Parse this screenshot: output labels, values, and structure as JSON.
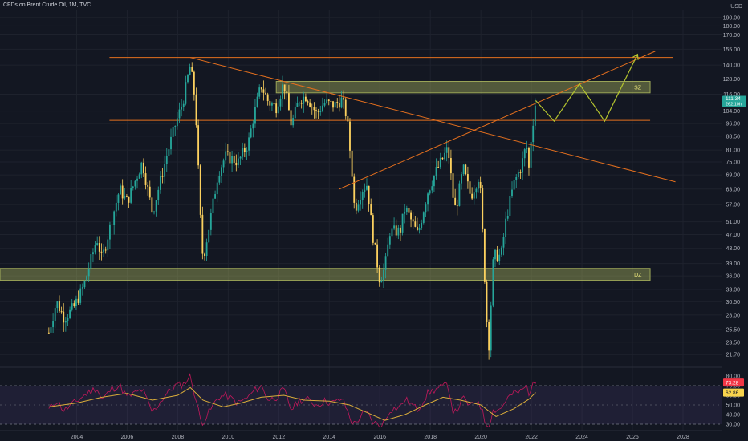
{
  "header": {
    "title": "CFDs on Brent Crude Oil, 1M, TVC"
  },
  "colors": {
    "background": "#131722",
    "candle_up": "#26a69a",
    "candle_down": "#fcd15f",
    "orange_line": "#e36f1e",
    "zone_fill": "#c8d36a",
    "projection": "#b5c52f",
    "rsi": "#c2185b",
    "rsi_ma": "#d9ac3a",
    "price_tag": "#26a69a"
  },
  "chart_data": {
    "type": "candlestick",
    "symbol": "CFDs on Brent Crude Oil",
    "interval": "1M",
    "source": "TVC",
    "currency": "USD",
    "scale": "log",
    "x_ticks": [
      "2004",
      "2006",
      "2008",
      "2010",
      "2012",
      "2014",
      "2016",
      "2018",
      "2020",
      "2022",
      "2024",
      "2026",
      "2028"
    ],
    "y_ticks": [
      190.0,
      180.0,
      170.0,
      155.0,
      140.0,
      128.0,
      116.0,
      104.0,
      96.0,
      88.5,
      81.0,
      75.0,
      69.0,
      63.0,
      57.0,
      51.0,
      47.0,
      43.0,
      39.0,
      36.0,
      33.0,
      30.5,
      28.0,
      25.5,
      23.5,
      21.7
    ],
    "last_price": "111.34",
    "price_tag_sub": "262:10h",
    "price_series": [
      [
        2002.9,
        25.0
      ],
      [
        2003.2,
        30.5
      ],
      [
        2003.5,
        27.5
      ],
      [
        2003.9,
        29.5
      ],
      [
        2004.3,
        34.0
      ],
      [
        2004.8,
        46.0
      ],
      [
        2005.0,
        40.0
      ],
      [
        2005.4,
        52.0
      ],
      [
        2005.7,
        63.0
      ],
      [
        2006.0,
        58.0
      ],
      [
        2006.6,
        75.0
      ],
      [
        2007.0,
        54.0
      ],
      [
        2007.5,
        75.0
      ],
      [
        2007.9,
        95.0
      ],
      [
        2008.2,
        110.0
      ],
      [
        2008.5,
        140.0
      ],
      [
        2008.7,
        110.0
      ],
      [
        2008.9,
        52.0
      ],
      [
        2009.0,
        40.0
      ],
      [
        2009.3,
        52.0
      ],
      [
        2009.6,
        70.0
      ],
      [
        2009.9,
        78.0
      ],
      [
        2010.4,
        75.0
      ],
      [
        2010.8,
        85.0
      ],
      [
        2011.0,
        100.0
      ],
      [
        2011.3,
        123.0
      ],
      [
        2011.6,
        110.0
      ],
      [
        2011.9,
        107.0
      ],
      [
        2012.2,
        125.0
      ],
      [
        2012.5,
        95.0
      ],
      [
        2012.8,
        112.0
      ],
      [
        2013.1,
        115.0
      ],
      [
        2013.5,
        102.0
      ],
      [
        2013.8,
        110.0
      ],
      [
        2014.2,
        108.0
      ],
      [
        2014.5,
        112.0
      ],
      [
        2014.7,
        100.0
      ],
      [
        2014.9,
        70.0
      ],
      [
        2015.0,
        55.0
      ],
      [
        2015.3,
        63.0
      ],
      [
        2015.5,
        65.0
      ],
      [
        2015.7,
        48.0
      ],
      [
        2016.0,
        35.0
      ],
      [
        2016.2,
        38.0
      ],
      [
        2016.4,
        48.0
      ],
      [
        2016.8,
        48.0
      ],
      [
        2017.0,
        56.0
      ],
      [
        2017.5,
        47.0
      ],
      [
        2017.9,
        62.0
      ],
      [
        2018.2,
        70.0
      ],
      [
        2018.7,
        82.0
      ],
      [
        2018.9,
        60.0
      ],
      [
        2019.0,
        55.0
      ],
      [
        2019.3,
        72.0
      ],
      [
        2019.6,
        60.0
      ],
      [
        2019.9,
        68.0
      ],
      [
        2020.0,
        60.0
      ],
      [
        2020.2,
        30.0
      ],
      [
        2020.3,
        22.0
      ],
      [
        2020.5,
        41.0
      ],
      [
        2020.8,
        41.0
      ],
      [
        2021.0,
        52.0
      ],
      [
        2021.3,
        65.0
      ],
      [
        2021.6,
        73.0
      ],
      [
        2021.8,
        84.0
      ],
      [
        2021.9,
        72.0
      ],
      [
        2022.0,
        90.0
      ],
      [
        2022.17,
        111.34
      ]
    ],
    "lines": [
      {
        "type": "horizontal",
        "y": 147
      },
      {
        "type": "horizontal",
        "y": 98
      },
      {
        "type": "trendline",
        "from": [
          2008.5,
          147
        ],
        "to": [
          2027.7,
          66
        ]
      },
      {
        "type": "trendline",
        "from": [
          2014.4,
          63
        ],
        "to": [
          2026.9,
          153
        ]
      }
    ],
    "zones": [
      {
        "label": "SZ",
        "y_low": 117,
        "y_high": 126
      },
      {
        "label": "DZ",
        "y_low": 35,
        "y_high": 37.8
      }
    ],
    "projection": [
      [
        2022.17,
        111.34
      ],
      [
        2022.9,
        97.5
      ],
      [
        2023.9,
        124
      ],
      [
        2024.9,
        97.5
      ],
      [
        2026.2,
        150
      ]
    ],
    "rsi": {
      "y_ticks": [
        80.0,
        70.0,
        60.0,
        50.0,
        40.0,
        30.0
      ],
      "levels": [
        70,
        30
      ],
      "value_label": "73.28",
      "ma_label": "62.86",
      "series": [
        [
          2002.9,
          45
        ],
        [
          2003.2,
          55
        ],
        [
          2003.5,
          44
        ],
        [
          2003.9,
          52
        ],
        [
          2004.3,
          60
        ],
        [
          2004.8,
          68
        ],
        [
          2005.0,
          55
        ],
        [
          2005.4,
          67
        ],
        [
          2005.7,
          70
        ],
        [
          2006.0,
          58
        ],
        [
          2006.6,
          66
        ],
        [
          2007.0,
          42
        ],
        [
          2007.5,
          60
        ],
        [
          2007.9,
          70
        ],
        [
          2008.2,
          71
        ],
        [
          2008.5,
          80
        ],
        [
          2008.7,
          58
        ],
        [
          2008.9,
          35
        ],
        [
          2009.0,
          32
        ],
        [
          2009.3,
          45
        ],
        [
          2009.6,
          58
        ],
        [
          2009.9,
          60
        ],
        [
          2010.4,
          52
        ],
        [
          2010.8,
          58
        ],
        [
          2011.0,
          64
        ],
        [
          2011.3,
          70
        ],
        [
          2011.6,
          55
        ],
        [
          2011.9,
          58
        ],
        [
          2012.2,
          66
        ],
        [
          2012.5,
          45
        ],
        [
          2012.8,
          55
        ],
        [
          2013.1,
          56
        ],
        [
          2013.5,
          50
        ],
        [
          2013.8,
          54
        ],
        [
          2014.2,
          52
        ],
        [
          2014.5,
          57
        ],
        [
          2014.7,
          45
        ],
        [
          2014.9,
          32
        ],
        [
          2015.0,
          30
        ],
        [
          2015.3,
          40
        ],
        [
          2015.5,
          42
        ],
        [
          2015.7,
          33
        ],
        [
          2016.0,
          28
        ],
        [
          2016.2,
          33
        ],
        [
          2016.4,
          45
        ],
        [
          2016.8,
          48
        ],
        [
          2017.0,
          56
        ],
        [
          2017.5,
          45
        ],
        [
          2017.9,
          62
        ],
        [
          2018.2,
          66
        ],
        [
          2018.7,
          71
        ],
        [
          2018.9,
          44
        ],
        [
          2019.0,
          42
        ],
        [
          2019.3,
          57
        ],
        [
          2019.6,
          48
        ],
        [
          2019.9,
          55
        ],
        [
          2020.0,
          48
        ],
        [
          2020.2,
          30
        ],
        [
          2020.3,
          29
        ],
        [
          2020.5,
          45
        ],
        [
          2020.8,
          46
        ],
        [
          2021.0,
          56
        ],
        [
          2021.3,
          62
        ],
        [
          2021.6,
          64
        ],
        [
          2021.8,
          70
        ],
        [
          2021.9,
          63
        ],
        [
          2022.0,
          68
        ],
        [
          2022.17,
          73.28
        ]
      ],
      "ma_series": [
        [
          2002.9,
          48
        ],
        [
          2004.0,
          52
        ],
        [
          2005.0,
          58
        ],
        [
          2006.0,
          62
        ],
        [
          2007.0,
          55
        ],
        [
          2008.0,
          60
        ],
        [
          2008.5,
          68
        ],
        [
          2009.0,
          55
        ],
        [
          2009.8,
          48
        ],
        [
          2010.5,
          52
        ],
        [
          2011.3,
          58
        ],
        [
          2012.2,
          60
        ],
        [
          2013.0,
          55
        ],
        [
          2014.0,
          54
        ],
        [
          2014.8,
          50
        ],
        [
          2015.5,
          42
        ],
        [
          2016.2,
          34
        ],
        [
          2017.0,
          40
        ],
        [
          2017.8,
          50
        ],
        [
          2018.5,
          58
        ],
        [
          2019.2,
          55
        ],
        [
          2020.0,
          50
        ],
        [
          2020.6,
          38
        ],
        [
          2021.3,
          46
        ],
        [
          2021.9,
          56
        ],
        [
          2022.17,
          62.86
        ]
      ]
    }
  }
}
